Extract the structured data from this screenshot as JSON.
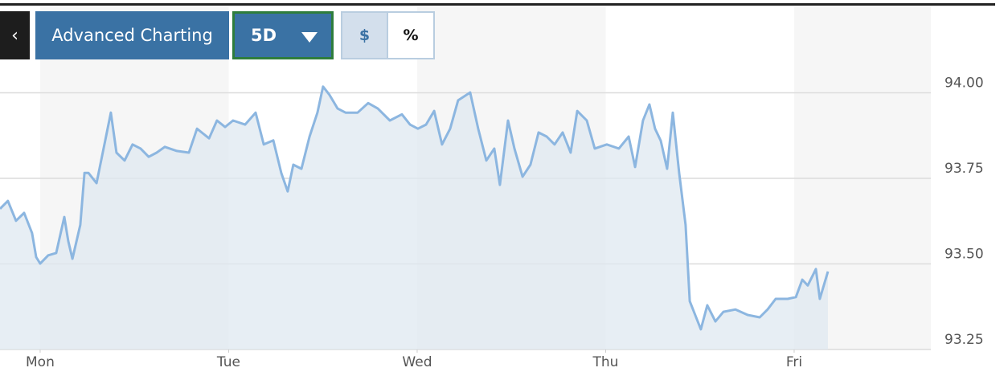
{
  "toolbar": {
    "button": "Advanced Charting",
    "range": "5D",
    "toggle": [
      "$",
      "%"
    ]
  },
  "chart_data": {
    "type": "area",
    "color": "#8cb6e0",
    "fill": "#dfe8f0",
    "xlim": [
      -0.213,
      4.725
    ],
    "ylim": [
      93.25,
      94.25
    ],
    "xticks": [
      {
        "value": 0,
        "label": "Mon"
      },
      {
        "value": 1,
        "label": "Tue"
      },
      {
        "value": 2,
        "label": "Wed"
      },
      {
        "value": 3,
        "label": "Thu"
      },
      {
        "value": 4,
        "label": "Fri"
      }
    ],
    "yticks": [
      {
        "value": 93.25,
        "label": "93.25"
      },
      {
        "value": 93.5,
        "label": "93.50"
      },
      {
        "value": 93.75,
        "label": "93.75"
      },
      {
        "value": 94,
        "label": "94.00"
      }
    ],
    "grid": true,
    "x": [
      -0.213,
      -0.171,
      -0.128,
      -0.085,
      -0.043,
      -0.021,
      0,
      0.043,
      0.085,
      0.128,
      0.149,
      0.171,
      0.213,
      0.235,
      0.256,
      0.299,
      0.341,
      0.375,
      0.405,
      0.448,
      0.49,
      0.533,
      0.576,
      0.618,
      0.661,
      0.725,
      0.789,
      0.832,
      0.896,
      0.938,
      0.981,
      1.023,
      1.087,
      1.143,
      1.186,
      1.237,
      1.279,
      1.313,
      1.343,
      1.386,
      1.429,
      1.471,
      1.501,
      1.535,
      1.578,
      1.62,
      1.684,
      1.74,
      1.791,
      1.855,
      1.919,
      1.962,
      2.004,
      2.047,
      2.09,
      2.132,
      2.175,
      2.217,
      2.281,
      2.324,
      2.367,
      2.409,
      2.439,
      2.482,
      2.516,
      2.559,
      2.601,
      2.644,
      2.687,
      2.729,
      2.772,
      2.814,
      2.849,
      2.9,
      2.942,
      3.006,
      3.07,
      3.122,
      3.156,
      3.198,
      3.232,
      3.262,
      3.292,
      3.326,
      3.356,
      3.39,
      3.424,
      3.446,
      3.48,
      3.505,
      3.539,
      3.582,
      3.625,
      3.689,
      3.753,
      3.817,
      3.859,
      3.902,
      3.966,
      4.009,
      4.043,
      4.072,
      4.115,
      4.136,
      4.179
    ],
    "values": [
      93.661,
      93.684,
      93.626,
      93.649,
      93.59,
      93.52,
      93.501,
      93.525,
      93.532,
      93.637,
      93.567,
      93.515,
      93.614,
      93.766,
      93.766,
      93.736,
      93.849,
      93.942,
      93.825,
      93.802,
      93.849,
      93.837,
      93.813,
      93.825,
      93.842,
      93.83,
      93.825,
      93.895,
      93.867,
      93.919,
      93.9,
      93.919,
      93.907,
      93.942,
      93.849,
      93.861,
      93.766,
      93.712,
      93.79,
      93.778,
      93.872,
      93.942,
      94.018,
      93.994,
      93.954,
      93.942,
      93.942,
      93.97,
      93.954,
      93.919,
      93.937,
      93.907,
      93.895,
      93.907,
      93.947,
      93.849,
      93.895,
      93.978,
      94.001,
      93.895,
      93.802,
      93.837,
      93.731,
      93.919,
      93.837,
      93.755,
      93.79,
      93.884,
      93.872,
      93.849,
      93.884,
      93.825,
      93.947,
      93.919,
      93.837,
      93.849,
      93.837,
      93.872,
      93.783,
      93.919,
      93.966,
      93.895,
      93.86,
      93.778,
      93.942,
      93.766,
      93.614,
      93.391,
      93.344,
      93.309,
      93.379,
      93.332,
      93.36,
      93.367,
      93.351,
      93.344,
      93.367,
      93.398,
      93.398,
      93.403,
      93.454,
      93.437,
      93.485,
      93.398,
      93.478
    ]
  }
}
